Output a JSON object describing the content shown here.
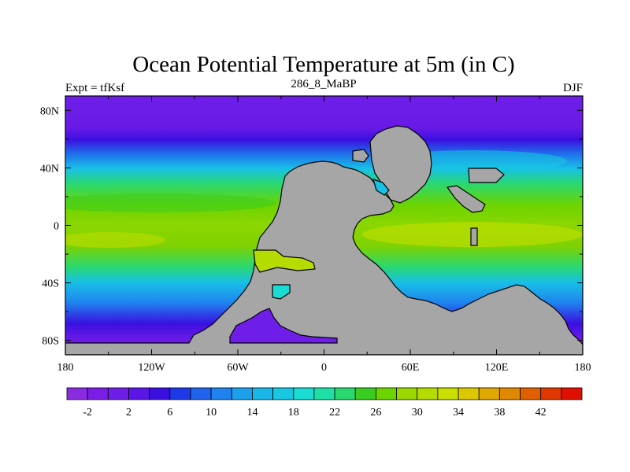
{
  "chart_data": {
    "type": "heatmap",
    "title": "Ocean Potential Temperature at 5m (in C)",
    "left_label": "Expt = tfKsf",
    "center_label": "286_8_MaBP",
    "right_label": "DJF",
    "x_ticks": [
      "180",
      "120W",
      "60W",
      "0",
      "60E",
      "120E",
      "180"
    ],
    "x_tick_values": [
      -180,
      -120,
      -60,
      0,
      60,
      120,
      180
    ],
    "y_ticks": [
      "80N",
      "40N",
      "0",
      "40S",
      "80S"
    ],
    "y_tick_values": [
      80,
      40,
      0,
      -40,
      -80
    ],
    "xlim": [
      -180,
      180
    ],
    "ylim": [
      -90,
      90
    ],
    "colorbar_labels": [
      "-2",
      "2",
      "6",
      "10",
      "14",
      "18",
      "22",
      "26",
      "30",
      "34",
      "38",
      "42"
    ],
    "colorbar_levels": [
      -4,
      -2,
      0,
      2,
      4,
      6,
      8,
      10,
      12,
      14,
      16,
      18,
      20,
      22,
      24,
      26,
      28,
      30,
      32,
      34,
      36,
      38,
      40,
      42,
      44
    ],
    "colorbar_colors": [
      "#8a2be2",
      "#7a1de6",
      "#6e1ee8",
      "#5a16e6",
      "#3a10e0",
      "#1e3ae8",
      "#1f62ec",
      "#1f82ee",
      "#1ca0ec",
      "#1ab7e8",
      "#18c8e2",
      "#1adcd2",
      "#1ee0a6",
      "#2ad870",
      "#3acc20",
      "#6cd400",
      "#9ad800",
      "#b4dc00",
      "#cce000",
      "#dcc800",
      "#e0a800",
      "#e08800",
      "#e06000",
      "#e03800",
      "#e01000"
    ],
    "land_color": "#a6a6a6"
  }
}
